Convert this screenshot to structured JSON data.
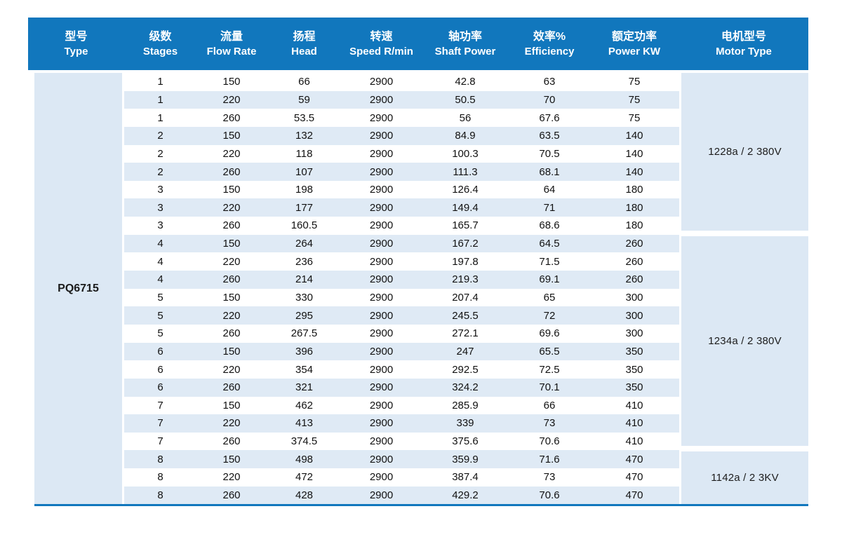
{
  "table": {
    "pump_type": "PQ6715",
    "columns": [
      {
        "zh": "型号",
        "en": "Type"
      },
      {
        "zh": "级数",
        "en": "Stages"
      },
      {
        "zh": "流量",
        "en": "Flow Rate"
      },
      {
        "zh": "扬程",
        "en": "Head"
      },
      {
        "zh": "转速",
        "en": "Speed R/min"
      },
      {
        "zh": "轴功率",
        "en": "Shaft Power"
      },
      {
        "zh": "效率%",
        "en": "Efficiency"
      },
      {
        "zh": "额定功率",
        "en": "Power KW"
      },
      {
        "zh": "电机型号",
        "en": "Motor Type"
      }
    ],
    "rows": [
      [
        "1",
        "150",
        "66",
        "2900",
        "42.8",
        "63",
        "75"
      ],
      [
        "1",
        "220",
        "59",
        "2900",
        "50.5",
        "70",
        "75"
      ],
      [
        "1",
        "260",
        "53.5",
        "2900",
        "56",
        "67.6",
        "75"
      ],
      [
        "2",
        "150",
        "132",
        "2900",
        "84.9",
        "63.5",
        "140"
      ],
      [
        "2",
        "220",
        "118",
        "2900",
        "100.3",
        "70.5",
        "140"
      ],
      [
        "2",
        "260",
        "107",
        "2900",
        "111.3",
        "68.1",
        "140"
      ],
      [
        "3",
        "150",
        "198",
        "2900",
        "126.4",
        "64",
        "180"
      ],
      [
        "3",
        "220",
        "177",
        "2900",
        "149.4",
        "71",
        "180"
      ],
      [
        "3",
        "260",
        "160.5",
        "2900",
        "165.7",
        "68.6",
        "180"
      ],
      [
        "4",
        "150",
        "264",
        "2900",
        "167.2",
        "64.5",
        "260"
      ],
      [
        "4",
        "220",
        "236",
        "2900",
        "197.8",
        "71.5",
        "260"
      ],
      [
        "4",
        "260",
        "214",
        "2900",
        "219.3",
        "69.1",
        "260"
      ],
      [
        "5",
        "150",
        "330",
        "2900",
        "207.4",
        "65",
        "300"
      ],
      [
        "5",
        "220",
        "295",
        "2900",
        "245.5",
        "72",
        "300"
      ],
      [
        "5",
        "260",
        "267.5",
        "2900",
        "272.1",
        "69.6",
        "300"
      ],
      [
        "6",
        "150",
        "396",
        "2900",
        "247",
        "65.5",
        "350"
      ],
      [
        "6",
        "220",
        "354",
        "2900",
        "292.5",
        "72.5",
        "350"
      ],
      [
        "6",
        "260",
        "321",
        "2900",
        "324.2",
        "70.1",
        "350"
      ],
      [
        "7",
        "150",
        "462",
        "2900",
        "285.9",
        "66",
        "410"
      ],
      [
        "7",
        "220",
        "413",
        "2900",
        "339",
        "73",
        "410"
      ],
      [
        "7",
        "260",
        "374.5",
        "2900",
        "375.6",
        "70.6",
        "410"
      ],
      [
        "8",
        "150",
        "498",
        "2900",
        "359.9",
        "71.6",
        "470"
      ],
      [
        "8",
        "220",
        "472",
        "2900",
        "387.4",
        "73",
        "470"
      ],
      [
        "8",
        "260",
        "428",
        "2900",
        "429.2",
        "70.6",
        "470"
      ]
    ],
    "motor_groups": [
      {
        "label": "1228a / 2  380V",
        "rows": 9
      },
      {
        "label": "1234a / 2  380V",
        "rows": 12
      },
      {
        "label": "1142a / 2  3KV",
        "rows": 3
      }
    ],
    "colors": {
      "header_bg": "#1177bd",
      "block_bg": "#dce8f4",
      "stripe_bg": "#dfeaf5",
      "bottom_border": "#1177bd"
    }
  }
}
